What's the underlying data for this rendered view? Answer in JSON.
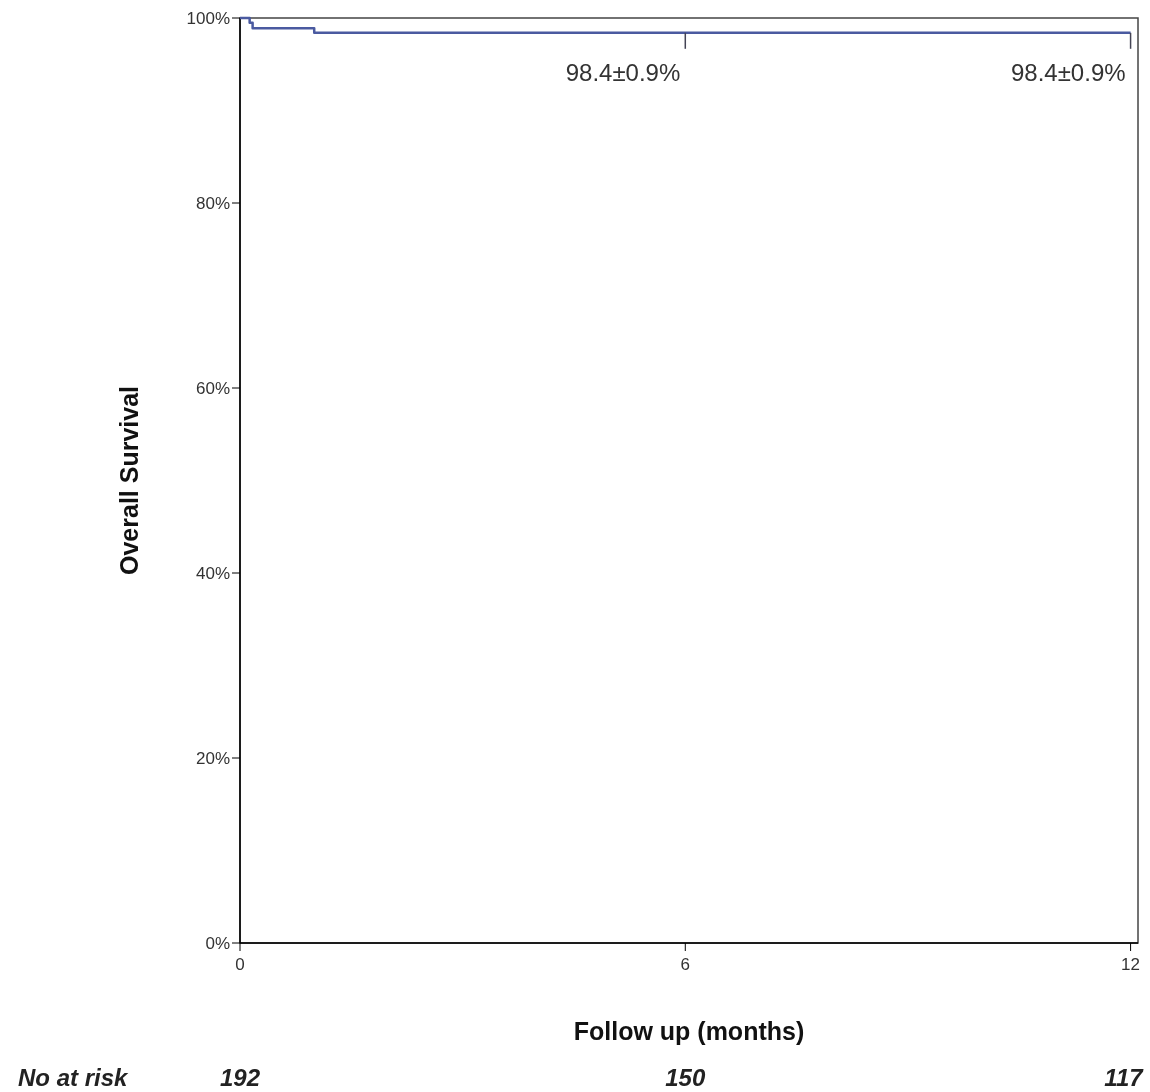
{
  "chart_data": {
    "type": "step",
    "ylabel": "Overall Survival",
    "xlabel": "Follow up (months)",
    "x": [
      0,
      0.13,
      0.17,
      1.0,
      12
    ],
    "series": [
      {
        "color": "#4a5aa0",
        "values": [
          100,
          99.5,
          98.9,
          98.4,
          98.4
        ]
      }
    ],
    "xlim": [
      0,
      12.1
    ],
    "xticks": [
      0,
      6,
      12
    ],
    "ylim": [
      0,
      100
    ],
    "yticks": [
      {
        "value": 0,
        "label": "0%"
      },
      {
        "value": 20,
        "label": "20%"
      },
      {
        "value": 40,
        "label": "40%"
      },
      {
        "value": 60,
        "label": "60%"
      },
      {
        "value": 80,
        "label": "80%"
      },
      {
        "value": 100,
        "label": "100%"
      }
    ],
    "grid": false,
    "annotations": [
      {
        "text": "98.4±0.9%",
        "x": 6,
        "y": 98.4
      },
      {
        "text": "98.4±0.9%",
        "x": 12,
        "y": 98.4
      },
      "No at risk",
      "192",
      "150",
      "117"
    ]
  }
}
